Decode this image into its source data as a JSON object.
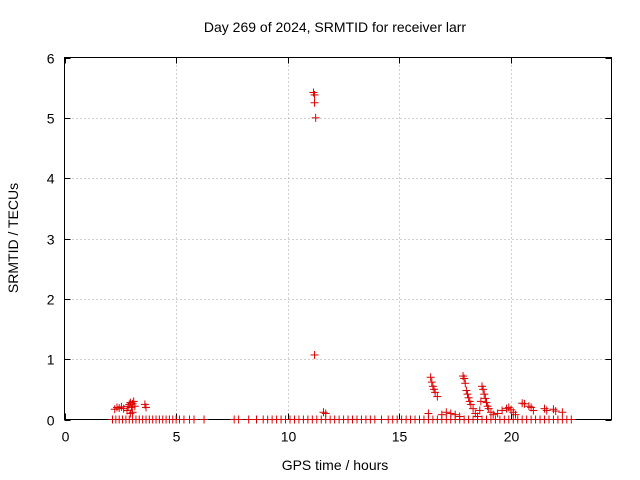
{
  "chart_data": {
    "type": "scatter",
    "title": "Day 269 of 2024, SRMTID for receiver larr",
    "xlabel": "GPS time / hours",
    "ylabel": "SRMTID / TECUs",
    "xlim": [
      0,
      24.5
    ],
    "ylim": [
      0,
      6
    ],
    "xticks": [
      0,
      5,
      10,
      15,
      20
    ],
    "yticks": [
      0,
      1,
      2,
      3,
      4,
      5,
      6
    ],
    "grid": true,
    "marker": "+",
    "colors": {
      "series": "#dd0000"
    },
    "series": [
      {
        "name": "",
        "points": [
          [
            2.15,
            0.0
          ],
          [
            2.3,
            0.0
          ],
          [
            2.45,
            0.0
          ],
          [
            2.6,
            0.0
          ],
          [
            2.75,
            0.0
          ],
          [
            2.9,
            0.0
          ],
          [
            3.05,
            0.0
          ],
          [
            3.2,
            0.0
          ],
          [
            3.35,
            0.0
          ],
          [
            3.5,
            0.0
          ],
          [
            3.65,
            0.0
          ],
          [
            3.8,
            0.0
          ],
          [
            3.95,
            0.0
          ],
          [
            4.1,
            0.0
          ],
          [
            4.25,
            0.0
          ],
          [
            4.4,
            0.0
          ],
          [
            4.55,
            0.0
          ],
          [
            4.7,
            0.0
          ],
          [
            4.85,
            0.0
          ],
          [
            5.0,
            0.0
          ],
          [
            5.15,
            0.0
          ],
          [
            5.35,
            0.0
          ],
          [
            5.6,
            0.0
          ],
          [
            5.8,
            0.0
          ],
          [
            6.25,
            0.0
          ],
          [
            7.6,
            0.0
          ],
          [
            7.8,
            0.0
          ],
          [
            8.25,
            0.0
          ],
          [
            8.6,
            0.0
          ],
          [
            8.9,
            0.0
          ],
          [
            9.1,
            0.0
          ],
          [
            9.3,
            0.0
          ],
          [
            9.5,
            0.0
          ],
          [
            9.7,
            0.0
          ],
          [
            9.9,
            0.0
          ],
          [
            10.1,
            0.0
          ],
          [
            10.3,
            0.0
          ],
          [
            10.5,
            0.0
          ],
          [
            10.7,
            0.0
          ],
          [
            10.9,
            0.0
          ],
          [
            11.1,
            0.0
          ],
          [
            11.3,
            0.0
          ],
          [
            11.5,
            0.0
          ],
          [
            11.7,
            0.0
          ],
          [
            11.9,
            0.0
          ],
          [
            12.1,
            0.0
          ],
          [
            12.3,
            0.0
          ],
          [
            12.5,
            0.0
          ],
          [
            12.7,
            0.0
          ],
          [
            12.9,
            0.0
          ],
          [
            13.1,
            0.0
          ],
          [
            13.3,
            0.0
          ],
          [
            13.5,
            0.0
          ],
          [
            13.7,
            0.0
          ],
          [
            13.9,
            0.0
          ],
          [
            14.2,
            0.0
          ],
          [
            14.5,
            0.0
          ],
          [
            14.7,
            0.0
          ],
          [
            14.9,
            0.0
          ],
          [
            15.1,
            0.0
          ],
          [
            15.3,
            0.0
          ],
          [
            15.5,
            0.0
          ],
          [
            15.7,
            0.0
          ],
          [
            15.9,
            0.0
          ],
          [
            16.1,
            0.0
          ],
          [
            16.3,
            0.0
          ],
          [
            16.5,
            0.0
          ],
          [
            16.7,
            0.0
          ],
          [
            16.9,
            0.0
          ],
          [
            17.1,
            0.0
          ],
          [
            17.3,
            0.0
          ],
          [
            17.5,
            0.0
          ],
          [
            17.7,
            0.0
          ],
          [
            17.9,
            0.0
          ],
          [
            18.1,
            0.0
          ],
          [
            18.3,
            0.0
          ],
          [
            18.5,
            0.0
          ],
          [
            18.7,
            0.0
          ],
          [
            18.9,
            0.0
          ],
          [
            19.1,
            0.0
          ],
          [
            19.3,
            0.0
          ],
          [
            19.5,
            0.0
          ],
          [
            19.7,
            0.0
          ],
          [
            19.9,
            0.0
          ],
          [
            20.1,
            0.0
          ],
          [
            20.3,
            0.0
          ],
          [
            20.5,
            0.0
          ],
          [
            20.7,
            0.0
          ],
          [
            20.9,
            0.0
          ],
          [
            21.1,
            0.0
          ],
          [
            21.3,
            0.0
          ],
          [
            21.5,
            0.0
          ],
          [
            21.7,
            0.0
          ],
          [
            21.9,
            0.0
          ],
          [
            22.1,
            0.0
          ],
          [
            22.3,
            0.0
          ],
          [
            22.5,
            0.0
          ],
          [
            22.7,
            0.0
          ],
          [
            2.25,
            0.17
          ],
          [
            2.35,
            0.2
          ],
          [
            2.45,
            0.19
          ],
          [
            2.55,
            0.21
          ],
          [
            2.65,
            0.18
          ],
          [
            2.8,
            0.15
          ],
          [
            2.85,
            0.22
          ],
          [
            2.9,
            0.25
          ],
          [
            2.95,
            0.28
          ],
          [
            3.0,
            0.2
          ],
          [
            3.05,
            0.26
          ],
          [
            3.1,
            0.3
          ],
          [
            3.15,
            0.22
          ],
          [
            3.6,
            0.25
          ],
          [
            3.65,
            0.2
          ],
          [
            2.95,
            0.1
          ],
          [
            3.05,
            0.12
          ],
          [
            11.15,
            5.42
          ],
          [
            11.2,
            5.38
          ],
          [
            11.2,
            5.25
          ],
          [
            11.25,
            5.0
          ],
          [
            11.2,
            1.07
          ],
          [
            11.6,
            0.12
          ],
          [
            11.7,
            0.1
          ],
          [
            16.3,
            0.1
          ],
          [
            16.4,
            0.7
          ],
          [
            16.45,
            0.62
          ],
          [
            16.5,
            0.55
          ],
          [
            16.55,
            0.5
          ],
          [
            16.6,
            0.45
          ],
          [
            16.7,
            0.38
          ],
          [
            16.9,
            0.08
          ],
          [
            17.1,
            0.12
          ],
          [
            17.3,
            0.1
          ],
          [
            17.5,
            0.08
          ],
          [
            17.7,
            0.05
          ],
          [
            17.85,
            0.72
          ],
          [
            17.9,
            0.68
          ],
          [
            17.95,
            0.6
          ],
          [
            18.0,
            0.48
          ],
          [
            18.05,
            0.42
          ],
          [
            18.1,
            0.36
          ],
          [
            18.15,
            0.3
          ],
          [
            18.2,
            0.25
          ],
          [
            18.3,
            0.18
          ],
          [
            18.4,
            0.1
          ],
          [
            18.5,
            0.05
          ],
          [
            18.6,
            0.15
          ],
          [
            18.65,
            0.3
          ],
          [
            18.7,
            0.55
          ],
          [
            18.75,
            0.5
          ],
          [
            18.8,
            0.42
          ],
          [
            18.85,
            0.35
          ],
          [
            18.9,
            0.28
          ],
          [
            18.95,
            0.22
          ],
          [
            19.0,
            0.18
          ],
          [
            19.1,
            0.12
          ],
          [
            19.2,
            0.08
          ],
          [
            19.4,
            0.1
          ],
          [
            19.6,
            0.15
          ],
          [
            19.8,
            0.18
          ],
          [
            19.9,
            0.2
          ],
          [
            20.0,
            0.16
          ],
          [
            20.1,
            0.12
          ],
          [
            20.2,
            0.08
          ],
          [
            20.5,
            0.27
          ],
          [
            20.6,
            0.26
          ],
          [
            20.8,
            0.22
          ],
          [
            20.9,
            0.2
          ],
          [
            21.0,
            0.15
          ],
          [
            21.5,
            0.18
          ],
          [
            21.6,
            0.15
          ],
          [
            21.9,
            0.17
          ],
          [
            22.0,
            0.14
          ],
          [
            22.3,
            0.12
          ]
        ]
      }
    ]
  }
}
